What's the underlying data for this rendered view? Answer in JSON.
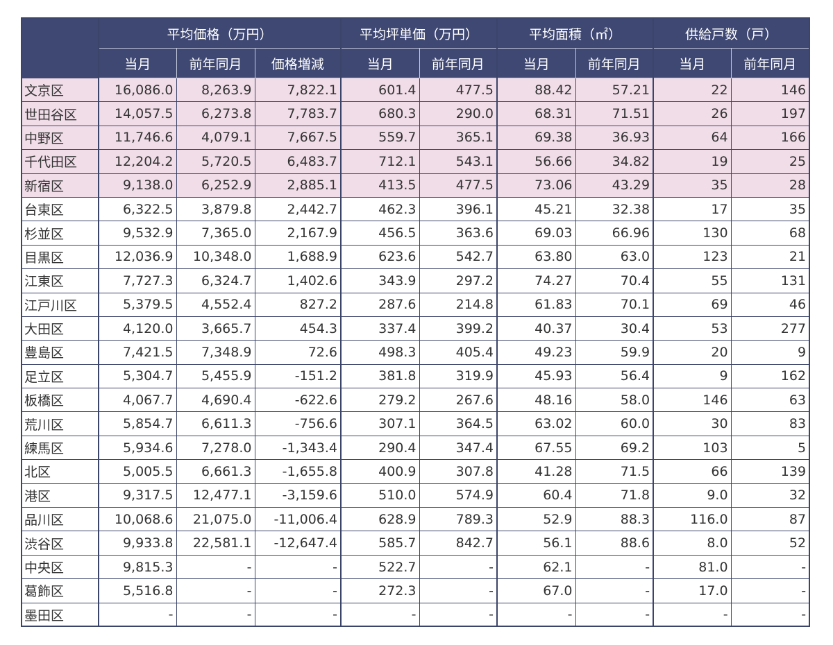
{
  "table": {
    "groups": [
      {
        "label": "平均価格（万円）",
        "span": 3
      },
      {
        "label": "平均坪単価（万円）",
        "span": 2
      },
      {
        "label": "平均面積（㎡）",
        "span": 2
      },
      {
        "label": "供給戸数（戸）",
        "span": 2
      }
    ],
    "subheaders": [
      "当月",
      "前年同月",
      "価格増減",
      "当月",
      "前年同月",
      "当月",
      "前年同月",
      "当月",
      "前年同月"
    ],
    "rows": [
      [
        "文京区",
        "16,086.0",
        "8,263.9",
        "7,822.1",
        "601.4",
        "477.5",
        "88.42",
        "57.21",
        "22",
        "146"
      ],
      [
        "世田谷区",
        "14,057.5",
        "6,273.8",
        "7,783.7",
        "680.3",
        "290.0",
        "68.31",
        "71.51",
        "26",
        "197"
      ],
      [
        "中野区",
        "11,746.6",
        "4,079.1",
        "7,667.5",
        "559.7",
        "365.1",
        "69.38",
        "36.93",
        "64",
        "166"
      ],
      [
        "千代田区",
        "12,204.2",
        "5,720.5",
        "6,483.7",
        "712.1",
        "543.1",
        "56.66",
        "34.82",
        "19",
        "25"
      ],
      [
        "新宿区",
        "9,138.0",
        "6,252.9",
        "2,885.1",
        "413.5",
        "477.5",
        "73.06",
        "43.29",
        "35",
        "28"
      ],
      [
        "台東区",
        "6,322.5",
        "3,879.8",
        "2,442.7",
        "462.3",
        "396.1",
        "45.21",
        "32.38",
        "17",
        "35"
      ],
      [
        "杉並区",
        "9,532.9",
        "7,365.0",
        "2,167.9",
        "456.5",
        "363.6",
        "69.03",
        "66.96",
        "130",
        "68"
      ],
      [
        "目黒区",
        "12,036.9",
        "10,348.0",
        "1,688.9",
        "623.6",
        "542.7",
        "63.80",
        "63.0",
        "123",
        "21"
      ],
      [
        "江東区",
        "7,727.3",
        "6,324.7",
        "1,402.6",
        "343.9",
        "297.2",
        "74.27",
        "70.4",
        "55",
        "131"
      ],
      [
        "江戸川区",
        "5,379.5",
        "4,552.4",
        "827.2",
        "287.6",
        "214.8",
        "61.83",
        "70.1",
        "69",
        "46"
      ],
      [
        "大田区",
        "4,120.0",
        "3,665.7",
        "454.3",
        "337.4",
        "399.2",
        "40.37",
        "30.4",
        "53",
        "277"
      ],
      [
        "豊島区",
        "7,421.5",
        "7,348.9",
        "72.6",
        "498.3",
        "405.4",
        "49.23",
        "59.9",
        "20",
        "9"
      ],
      [
        "足立区",
        "5,304.7",
        "5,455.9",
        "-151.2",
        "381.8",
        "319.9",
        "45.93",
        "56.4",
        "9",
        "162"
      ],
      [
        "板橋区",
        "4,067.7",
        "4,690.4",
        "-622.6",
        "279.2",
        "267.6",
        "48.16",
        "58.0",
        "146",
        "63"
      ],
      [
        "荒川区",
        "5,854.7",
        "6,611.3",
        "-756.6",
        "307.1",
        "364.5",
        "63.02",
        "60.0",
        "30",
        "83"
      ],
      [
        "練馬区",
        "5,934.6",
        "7,278.0",
        "-1,343.4",
        "290.4",
        "347.4",
        "67.55",
        "69.2",
        "103",
        "5"
      ],
      [
        "北区",
        "5,005.5",
        "6,661.3",
        "-1,655.8",
        "400.9",
        "307.8",
        "41.28",
        "71.5",
        "66",
        "139"
      ],
      [
        "港区",
        "9,317.5",
        "12,477.1",
        "-3,159.6",
        "510.0",
        "574.9",
        "60.4",
        "71.8",
        "9.0",
        "32"
      ],
      [
        "品川区",
        "10,068.6",
        "21,075.0",
        "-11,006.4",
        "628.9",
        "789.3",
        "52.9",
        "88.3",
        "116.0",
        "87"
      ],
      [
        "渋谷区",
        "9,933.8",
        "22,581.1",
        "-12,647.4",
        "585.7",
        "842.7",
        "56.1",
        "88.6",
        "8.0",
        "52"
      ],
      [
        "中央区",
        "9,815.3",
        "-",
        "-",
        "522.7",
        "-",
        "62.1",
        "-",
        "81.0",
        "-"
      ],
      [
        "葛飾区",
        "5,516.8",
        "-",
        "-",
        "272.3",
        "-",
        "67.0",
        "-",
        "17.0",
        "-"
      ],
      [
        "墨田区",
        "-",
        "-",
        "-",
        "-",
        "-",
        "-",
        "-",
        "-",
        "-"
      ]
    ]
  }
}
